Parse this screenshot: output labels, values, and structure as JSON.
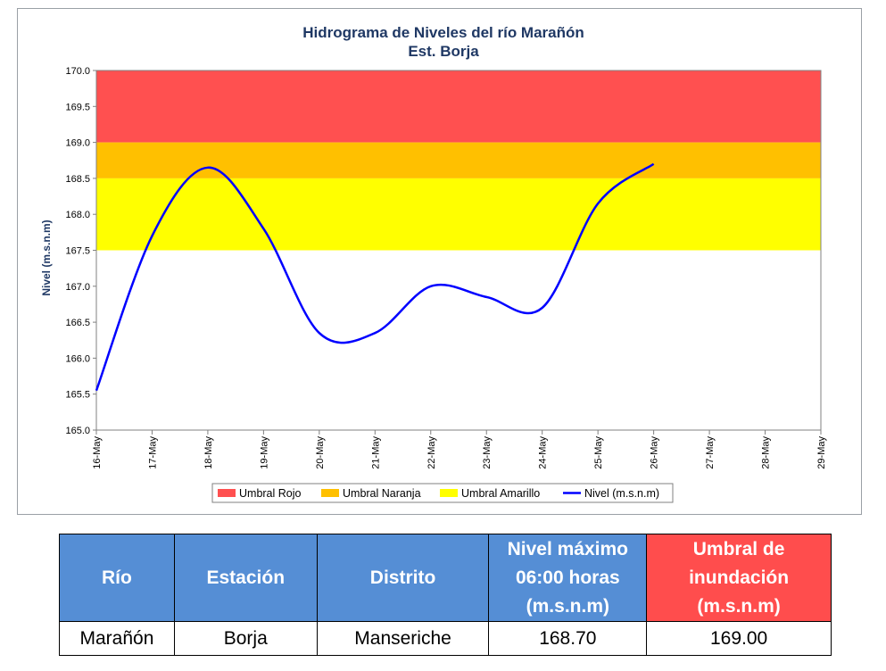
{
  "chart_data": {
    "type": "line",
    "title": "Hidrograma de Niveles del río Marañón",
    "subtitle": "Est. Borja",
    "ylabel": "Nivel (m.s.n.m)",
    "xlabel": "",
    "ylim": [
      165.0,
      170.0
    ],
    "yticks": [
      "165.0",
      "165.5",
      "166.0",
      "166.5",
      "167.0",
      "167.5",
      "168.0",
      "168.5",
      "169.0",
      "169.5",
      "170.0"
    ],
    "categories": [
      "16-May",
      "17-May",
      "18-May",
      "19-May",
      "20-May",
      "21-May",
      "22-May",
      "23-May",
      "24-May",
      "25-May",
      "26-May",
      "27-May",
      "28-May",
      "29-May"
    ],
    "bands": [
      {
        "name": "Umbral Rojo",
        "from": 169.0,
        "to": 170.0,
        "color": "#ff5050"
      },
      {
        "name": "Umbral Naranja",
        "from": 168.5,
        "to": 169.0,
        "color": "#ffc000"
      },
      {
        "name": "Umbral Amarillo",
        "from": 167.5,
        "to": 168.5,
        "color": "#ffff00"
      }
    ],
    "series": [
      {
        "name": "Nivel (m.s.n.m)",
        "color": "#0000ff",
        "x": [
          "16-May",
          "17-May",
          "18-May",
          "19-May",
          "20-May",
          "21-May",
          "22-May",
          "23-May",
          "24-May",
          "25-May",
          "26-May"
        ],
        "values": [
          165.55,
          167.7,
          168.65,
          167.8,
          166.35,
          166.35,
          167.0,
          166.85,
          166.7,
          168.15,
          168.7
        ]
      }
    ],
    "legend_position": "bottom",
    "grid": false
  },
  "table": {
    "headers": [
      {
        "lines": [
          "Río"
        ],
        "style": "blue"
      },
      {
        "lines": [
          "Estación"
        ],
        "style": "blue"
      },
      {
        "lines": [
          "Distrito"
        ],
        "style": "blue"
      },
      {
        "lines": [
          "Nivel máximo",
          "06:00 horas",
          "(m.s.n.m)"
        ],
        "style": "blue"
      },
      {
        "lines": [
          "Umbral de",
          "inundación",
          "(m.s.n.m)"
        ],
        "style": "red"
      }
    ],
    "row": {
      "rio": "Marañón",
      "estacion": "Borja",
      "distrito": "Manseriche",
      "nivel_maximo": "168.70",
      "umbral": "169.00"
    }
  }
}
